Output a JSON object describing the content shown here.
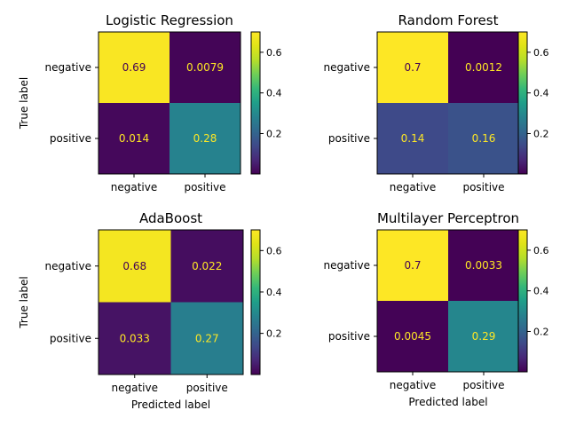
{
  "chart_data": [
    {
      "type": "heatmap",
      "title": "Logistic Regression",
      "rows": [
        "negative",
        "positive"
      ],
      "cols": [
        "negative",
        "positive"
      ],
      "values": [
        [
          0.69,
          0.0079
        ],
        [
          0.014,
          0.28
        ]
      ],
      "labels": [
        [
          "0.69",
          "0.0079"
        ],
        [
          "0.014",
          "0.28"
        ]
      ],
      "xlabel": "",
      "ylabel": "True label",
      "colorbar": {
        "min": 0.0012,
        "max": 0.7,
        "ticks": [
          0.2,
          0.4,
          0.6
        ],
        "tick_labels": [
          "0.2",
          "0.4",
          "0.6"
        ]
      }
    },
    {
      "type": "heatmap",
      "title": "Random Forest",
      "rows": [
        "negative",
        "positive"
      ],
      "cols": [
        "negative",
        "positive"
      ],
      "values": [
        [
          0.7,
          0.0012
        ],
        [
          0.14,
          0.16
        ]
      ],
      "labels": [
        [
          "0.7",
          "0.0012"
        ],
        [
          "0.14",
          "0.16"
        ]
      ],
      "xlabel": "",
      "ylabel": "",
      "colorbar": {
        "min": 0.0012,
        "max": 0.7,
        "ticks": [
          0.2,
          0.4,
          0.6
        ],
        "tick_labels": [
          "0.2",
          "0.4",
          "0.6"
        ]
      }
    },
    {
      "type": "heatmap",
      "title": "AdaBoost",
      "rows": [
        "negative",
        "positive"
      ],
      "cols": [
        "negative",
        "positive"
      ],
      "values": [
        [
          0.68,
          0.022
        ],
        [
          0.033,
          0.27
        ]
      ],
      "labels": [
        [
          "0.68",
          "0.022"
        ],
        [
          "0.033",
          "0.27"
        ]
      ],
      "xlabel": "Predicted label",
      "ylabel": "True label",
      "colorbar": {
        "min": 0.0012,
        "max": 0.7,
        "ticks": [
          0.2,
          0.4,
          0.6
        ],
        "tick_labels": [
          "0.2",
          "0.4",
          "0.6"
        ]
      }
    },
    {
      "type": "heatmap",
      "title": "Multilayer Perceptron",
      "rows": [
        "negative",
        "positive"
      ],
      "cols": [
        "negative",
        "positive"
      ],
      "values": [
        [
          0.7,
          0.0033
        ],
        [
          0.0045,
          0.29
        ]
      ],
      "labels": [
        [
          "0.7",
          "0.0033"
        ],
        [
          "0.0045",
          "0.29"
        ]
      ],
      "xlabel": "Predicted label",
      "ylabel": "",
      "colorbar": {
        "min": 0.0012,
        "max": 0.7,
        "ticks": [
          0.2,
          0.4,
          0.6
        ],
        "tick_labels": [
          "0.2",
          "0.4",
          "0.6"
        ]
      }
    }
  ],
  "colors": {
    "colormap": "viridis",
    "text_on_dark": "#fde725",
    "text_on_light": "#440154"
  }
}
